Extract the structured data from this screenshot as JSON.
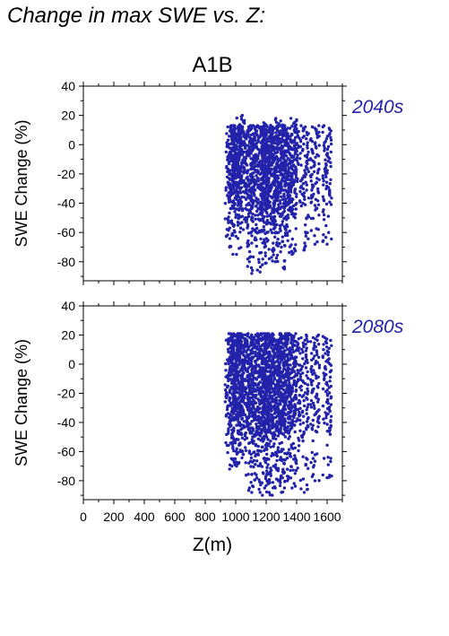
{
  "title": "Change in max SWE vs. Z:",
  "scenario": "A1B",
  "accent_color": "#2222aa",
  "chart_data": [
    {
      "type": "scatter",
      "period": "2040s",
      "ylabel": "SWE Change (%)",
      "xlabel": "Z(m)",
      "xlim": [
        0,
        1700
      ],
      "ylim": [
        -93,
        40
      ],
      "xticks": [
        0,
        200,
        400,
        600,
        800,
        1000,
        1200,
        1400,
        1600
      ],
      "yticks": [
        -80,
        -60,
        -40,
        -20,
        0,
        20,
        40
      ],
      "grid": false,
      "color": "#2222aa",
      "columns": [
        {
          "x": 960,
          "ymin": -70,
          "ymax": 13
        },
        {
          "x": 975,
          "ymin": -62,
          "ymax": 13
        },
        {
          "x": 990,
          "ymin": -55,
          "ymax": 13
        },
        {
          "x": 1005,
          "ymin": -75,
          "ymax": 13
        },
        {
          "x": 1020,
          "ymin": -50,
          "ymax": 13
        },
        {
          "x": 1035,
          "ymin": -42,
          "ymax": 20
        },
        {
          "x": 1050,
          "ymin": -58,
          "ymax": 13
        },
        {
          "x": 1090,
          "ymin": -80,
          "ymax": 13
        },
        {
          "x": 1105,
          "ymin": -88,
          "ymax": 13
        },
        {
          "x": 1125,
          "ymin": -65,
          "ymax": 13
        },
        {
          "x": 1160,
          "ymin": -87,
          "ymax": 13
        },
        {
          "x": 1175,
          "ymin": -82,
          "ymax": 13
        },
        {
          "x": 1190,
          "ymin": -70,
          "ymax": 13
        },
        {
          "x": 1205,
          "ymin": -60,
          "ymax": 15
        },
        {
          "x": 1220,
          "ymin": -78,
          "ymax": 13
        },
        {
          "x": 1240,
          "ymin": -72,
          "ymax": 13
        },
        {
          "x": 1260,
          "ymin": -80,
          "ymax": 13
        },
        {
          "x": 1280,
          "ymin": -60,
          "ymax": 18
        },
        {
          "x": 1300,
          "ymin": -70,
          "ymax": 13
        },
        {
          "x": 1320,
          "ymin": -85,
          "ymax": 13
        },
        {
          "x": 1340,
          "ymin": -62,
          "ymax": 13
        },
        {
          "x": 1370,
          "ymin": -75,
          "ymax": 13
        },
        {
          "x": 1390,
          "ymin": -50,
          "ymax": 18
        },
        {
          "x": 1450,
          "ymin": -72,
          "ymax": 13
        },
        {
          "x": 1520,
          "ymin": -68,
          "ymax": 13
        },
        {
          "x": 1600,
          "ymin": -68,
          "ymax": 13
        }
      ]
    },
    {
      "type": "scatter",
      "period": "2080s",
      "ylabel": "SWE Change (%)",
      "xlabel": "Z(m)",
      "xlim": [
        0,
        1700
      ],
      "ylim": [
        -93,
        40
      ],
      "xticks": [
        0,
        200,
        400,
        600,
        800,
        1000,
        1200,
        1400,
        1600
      ],
      "yticks": [
        -80,
        -60,
        -40,
        -20,
        0,
        20,
        40
      ],
      "grid": false,
      "color": "#2222aa",
      "columns": [
        {
          "x": 960,
          "ymin": -72,
          "ymax": 21
        },
        {
          "x": 975,
          "ymin": -70,
          "ymax": 21
        },
        {
          "x": 990,
          "ymin": -65,
          "ymax": 21
        },
        {
          "x": 1005,
          "ymin": -70,
          "ymax": 21
        },
        {
          "x": 1020,
          "ymin": -68,
          "ymax": 21
        },
        {
          "x": 1035,
          "ymin": -60,
          "ymax": 21
        },
        {
          "x": 1050,
          "ymin": -62,
          "ymax": 21
        },
        {
          "x": 1090,
          "ymin": -85,
          "ymax": 21
        },
        {
          "x": 1105,
          "ymin": -88,
          "ymax": 21
        },
        {
          "x": 1125,
          "ymin": -75,
          "ymax": 21
        },
        {
          "x": 1160,
          "ymin": -88,
          "ymax": 21
        },
        {
          "x": 1175,
          "ymin": -90,
          "ymax": 21
        },
        {
          "x": 1190,
          "ymin": -85,
          "ymax": 21
        },
        {
          "x": 1205,
          "ymin": -80,
          "ymax": 21
        },
        {
          "x": 1220,
          "ymin": -88,
          "ymax": 21
        },
        {
          "x": 1240,
          "ymin": -90,
          "ymax": 21
        },
        {
          "x": 1260,
          "ymin": -85,
          "ymax": 21
        },
        {
          "x": 1280,
          "ymin": -80,
          "ymax": 21
        },
        {
          "x": 1300,
          "ymin": -88,
          "ymax": 21
        },
        {
          "x": 1320,
          "ymin": -85,
          "ymax": 21
        },
        {
          "x": 1340,
          "ymin": -80,
          "ymax": 21
        },
        {
          "x": 1370,
          "ymin": -85,
          "ymax": 21
        },
        {
          "x": 1390,
          "ymin": -75,
          "ymax": 21
        },
        {
          "x": 1450,
          "ymin": -88,
          "ymax": 20
        },
        {
          "x": 1520,
          "ymin": -80,
          "ymax": 20
        },
        {
          "x": 1600,
          "ymin": -78,
          "ymax": 19
        }
      ]
    }
  ]
}
